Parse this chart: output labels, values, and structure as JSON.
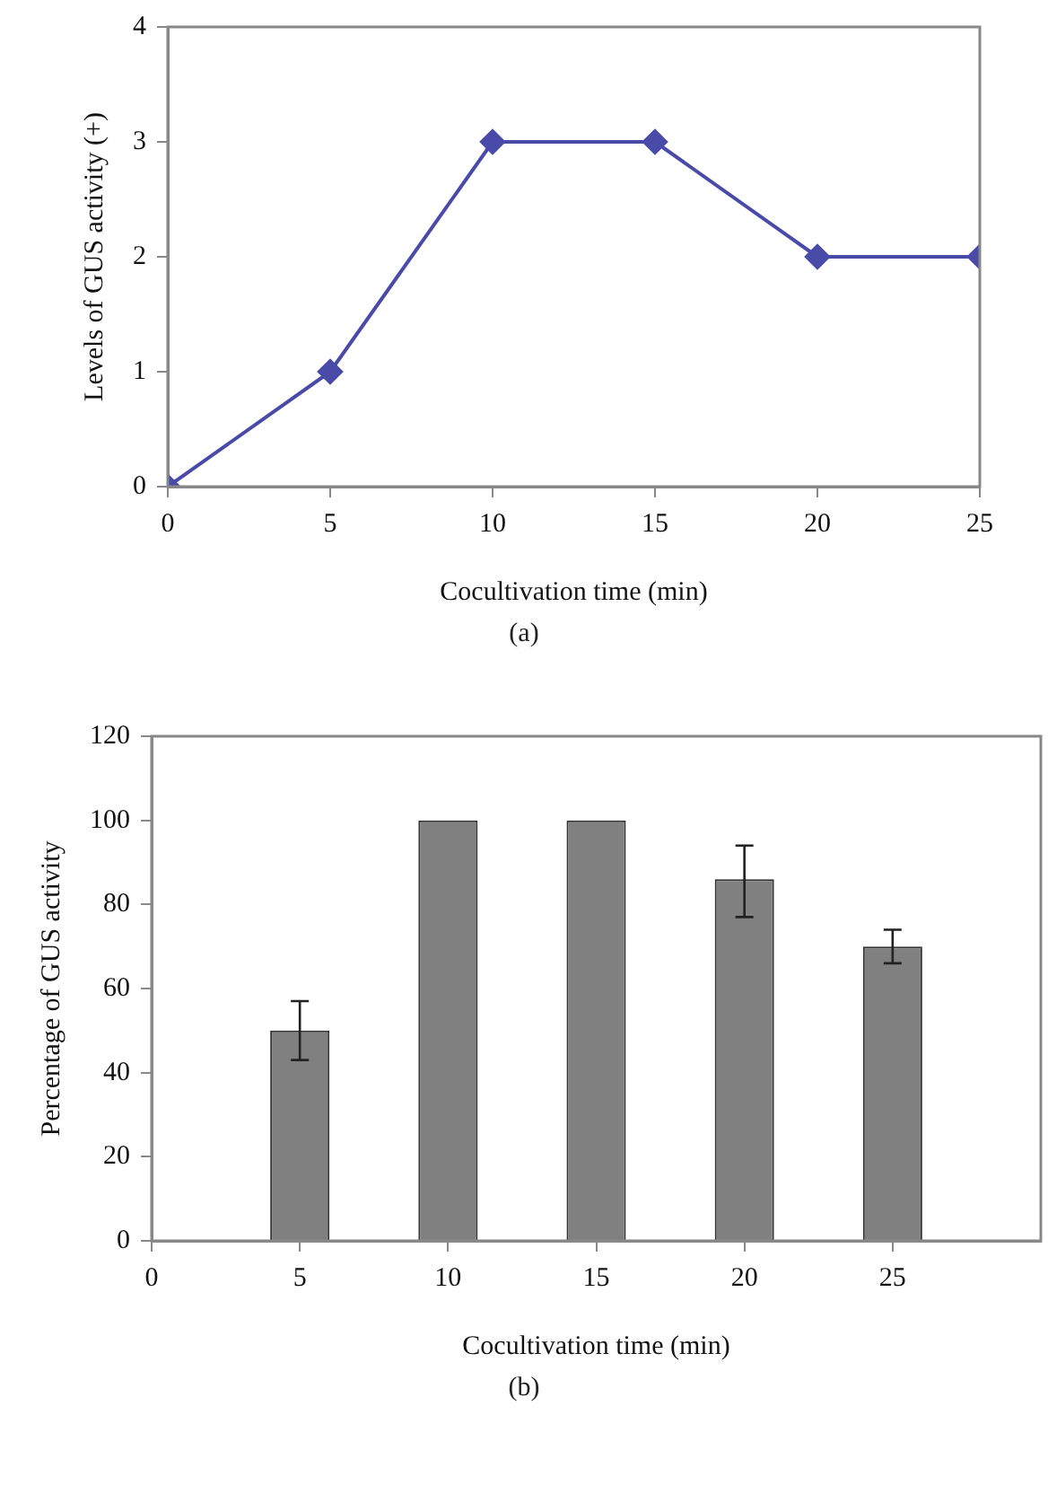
{
  "chart_data": [
    {
      "type": "line",
      "xlabel": "Cocultivation time (min)",
      "ylabel": "Levels of GUS activity (+)",
      "x": [
        0,
        5,
        10,
        15,
        20,
        25
      ],
      "series": [
        {
          "color": "#4a4aa8",
          "values": [
            0,
            1,
            3,
            3,
            2,
            2
          ]
        }
      ],
      "xlim": [
        0,
        25
      ],
      "xticks": [
        0,
        5,
        10,
        15,
        20,
        25
      ],
      "ylim": [
        0,
        4
      ],
      "yticks": [
        0,
        1,
        2,
        3,
        4
      ],
      "grid": false,
      "legend": false,
      "marker": "diamond",
      "annotations": [
        "(a)"
      ]
    },
    {
      "type": "bar",
      "xlabel": "Cocultivation time (min)",
      "ylabel": "Percentage of GUS activity",
      "x": [
        5,
        10,
        15,
        20,
        25
      ],
      "series": [
        {
          "color": "#808080",
          "values": [
            50,
            100,
            100,
            86,
            70
          ],
          "errors": [
            [
              43,
              57
            ],
            null,
            null,
            [
              77,
              94
            ],
            [
              66,
              74
            ]
          ]
        }
      ],
      "xlim": [
        0,
        30
      ],
      "xticks": [
        0,
        5,
        10,
        15,
        20,
        25
      ],
      "ylim": [
        0,
        120
      ],
      "yticks": [
        0,
        20,
        40,
        60,
        80,
        100,
        120
      ],
      "grid": false,
      "legend": false,
      "annotations": [
        "(b)"
      ]
    }
  ]
}
